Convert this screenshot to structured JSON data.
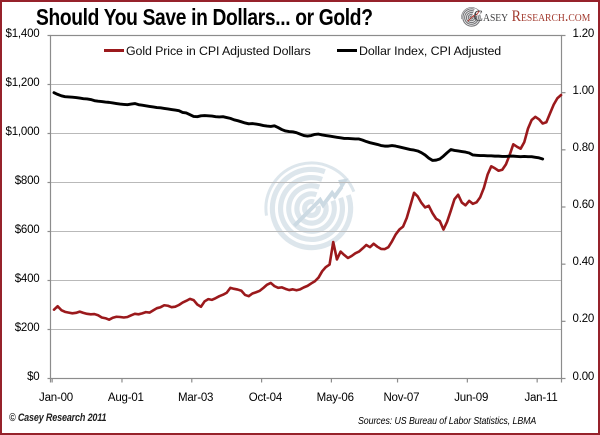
{
  "frame": {
    "border_color": "#96222b",
    "background_color": "#ffffff"
  },
  "header": {
    "title": "Should You Save in Dollars... or Gold?",
    "logo": {
      "icon": "casey-spiral-icon",
      "brand_primary": "Casey ",
      "brand_secondary": "Research.com",
      "primary_color": "#3f3f41",
      "secondary_color": "#a23a2e"
    }
  },
  "legend": [
    {
      "label": "Gold Price in CPI Adjusted Dollars",
      "color": "#9b191c"
    },
    {
      "label": "Dollar Index, CPI Adjusted",
      "color": "#000000"
    }
  ],
  "footer": {
    "copyright": "© Casey Research 2011",
    "sources": "Sources: US Bureau of Labor Statistics, LBMA"
  },
  "watermark": {
    "icon": "casey-spiral-watermark"
  },
  "chart_data": {
    "type": "line",
    "title": "Should You Save in Dollars... or Gold?",
    "grid": true,
    "legend_position": "top-inside",
    "x_tick_labels": [
      "Jan-00",
      "Aug-01",
      "Mar-03",
      "Oct-04",
      "May-06",
      "Nov-07",
      "Jun-09",
      "Jan-11"
    ],
    "x_tick_months": [
      0,
      19,
      38,
      57,
      76,
      94,
      113,
      132
    ],
    "left_axis": {
      "min": 0,
      "max": 1400,
      "step": 200,
      "tick_labels": [
        "$0",
        "$200",
        "$400",
        "$600",
        "$800",
        "$1,000",
        "$1,200",
        "$1,400"
      ]
    },
    "right_axis": {
      "min": 0,
      "max": 1.2,
      "step": 0.2,
      "tick_labels": [
        "0.00",
        "0.20",
        "0.40",
        "0.60",
        "0.80",
        "1.00",
        "1.20"
      ]
    },
    "series": [
      {
        "name": "Gold Price in CPI Adjusted Dollars",
        "axis": "left",
        "color": "#9b191c",
        "start_month": "2000-01",
        "frequency": "monthly",
        "values": [
          281,
          295,
          279,
          272,
          269,
          266,
          268,
          273,
          268,
          264,
          262,
          263,
          258,
          249,
          246,
          240,
          248,
          252,
          251,
          249,
          251,
          258,
          264,
          262,
          266,
          271,
          269,
          278,
          287,
          291,
          299,
          297,
          291,
          293,
          300,
          310,
          317,
          325,
          320,
          302,
          293,
          315,
          324,
          321,
          328,
          336,
          342,
          350,
          370,
          366,
          363,
          358,
          341,
          336,
          347,
          352,
          358,
          370,
          383,
          390,
          377,
          370,
          372,
          366,
          361,
          364,
          360,
          364,
          372,
          378,
          388,
          397,
          412,
          438,
          455,
          465,
          557,
          486,
          518,
          504,
          492,
          500,
          511,
          518,
          531,
          545,
          536,
          550,
          538,
          529,
          528,
          536,
          560,
          588,
          608,
          620,
          655,
          706,
          758,
          743,
          717,
          698,
          705,
          675,
          652,
          643,
          608,
          640,
          685,
          732,
          750,
          718,
          707,
          725,
          713,
          719,
          740,
          778,
          832,
          866,
          858,
          848,
          852,
          874,
          912,
          956,
          946,
          938,
          965,
          1020,
          1055,
          1068,
          1058,
          1041,
          1046,
          1082,
          1118,
          1144,
          1157
        ]
      },
      {
        "name": "Dollar Index, CPI Adjusted",
        "axis": "right",
        "color": "#000000",
        "start_month": "2000-01",
        "frequency": "monthly",
        "values": [
          1.0,
          0.994,
          0.989,
          0.986,
          0.985,
          0.984,
          0.983,
          0.981,
          0.979,
          0.978,
          0.976,
          0.972,
          0.97,
          0.969,
          0.967,
          0.966,
          0.964,
          0.962,
          0.96,
          0.959,
          0.958,
          0.96,
          0.962,
          0.958,
          0.956,
          0.954,
          0.952,
          0.95,
          0.948,
          0.947,
          0.945,
          0.943,
          0.941,
          0.939,
          0.937,
          0.931,
          0.929,
          0.923,
          0.917,
          0.916,
          0.919,
          0.92,
          0.919,
          0.918,
          0.916,
          0.915,
          0.916,
          0.913,
          0.91,
          0.905,
          0.902,
          0.898,
          0.894,
          0.891,
          0.892,
          0.89,
          0.888,
          0.885,
          0.883,
          0.882,
          0.884,
          0.878,
          0.871,
          0.866,
          0.864,
          0.863,
          0.86,
          0.855,
          0.85,
          0.848,
          0.85,
          0.854,
          0.855,
          0.852,
          0.85,
          0.848,
          0.846,
          0.844,
          0.842,
          0.84,
          0.84,
          0.839,
          0.838,
          0.838,
          0.834,
          0.829,
          0.825,
          0.822,
          0.819,
          0.815,
          0.813,
          0.813,
          0.815,
          0.813,
          0.81,
          0.807,
          0.804,
          0.801,
          0.799,
          0.796,
          0.79,
          0.782,
          0.771,
          0.763,
          0.764,
          0.768,
          0.778,
          0.79,
          0.801,
          0.798,
          0.796,
          0.794,
          0.792,
          0.789,
          0.782,
          0.781,
          0.78,
          0.78,
          0.779,
          0.779,
          0.778,
          0.778,
          0.777,
          0.777,
          0.778,
          0.778,
          0.777,
          0.776,
          0.777,
          0.776,
          0.776,
          0.774,
          0.772,
          0.768
        ]
      }
    ]
  },
  "style": {
    "gridline_color": "#b9b9b9",
    "axis_color": "#8c8c8c",
    "watermark_ring_color": "#dde6ec",
    "watermark_arrow_color": "#ccdae3"
  }
}
